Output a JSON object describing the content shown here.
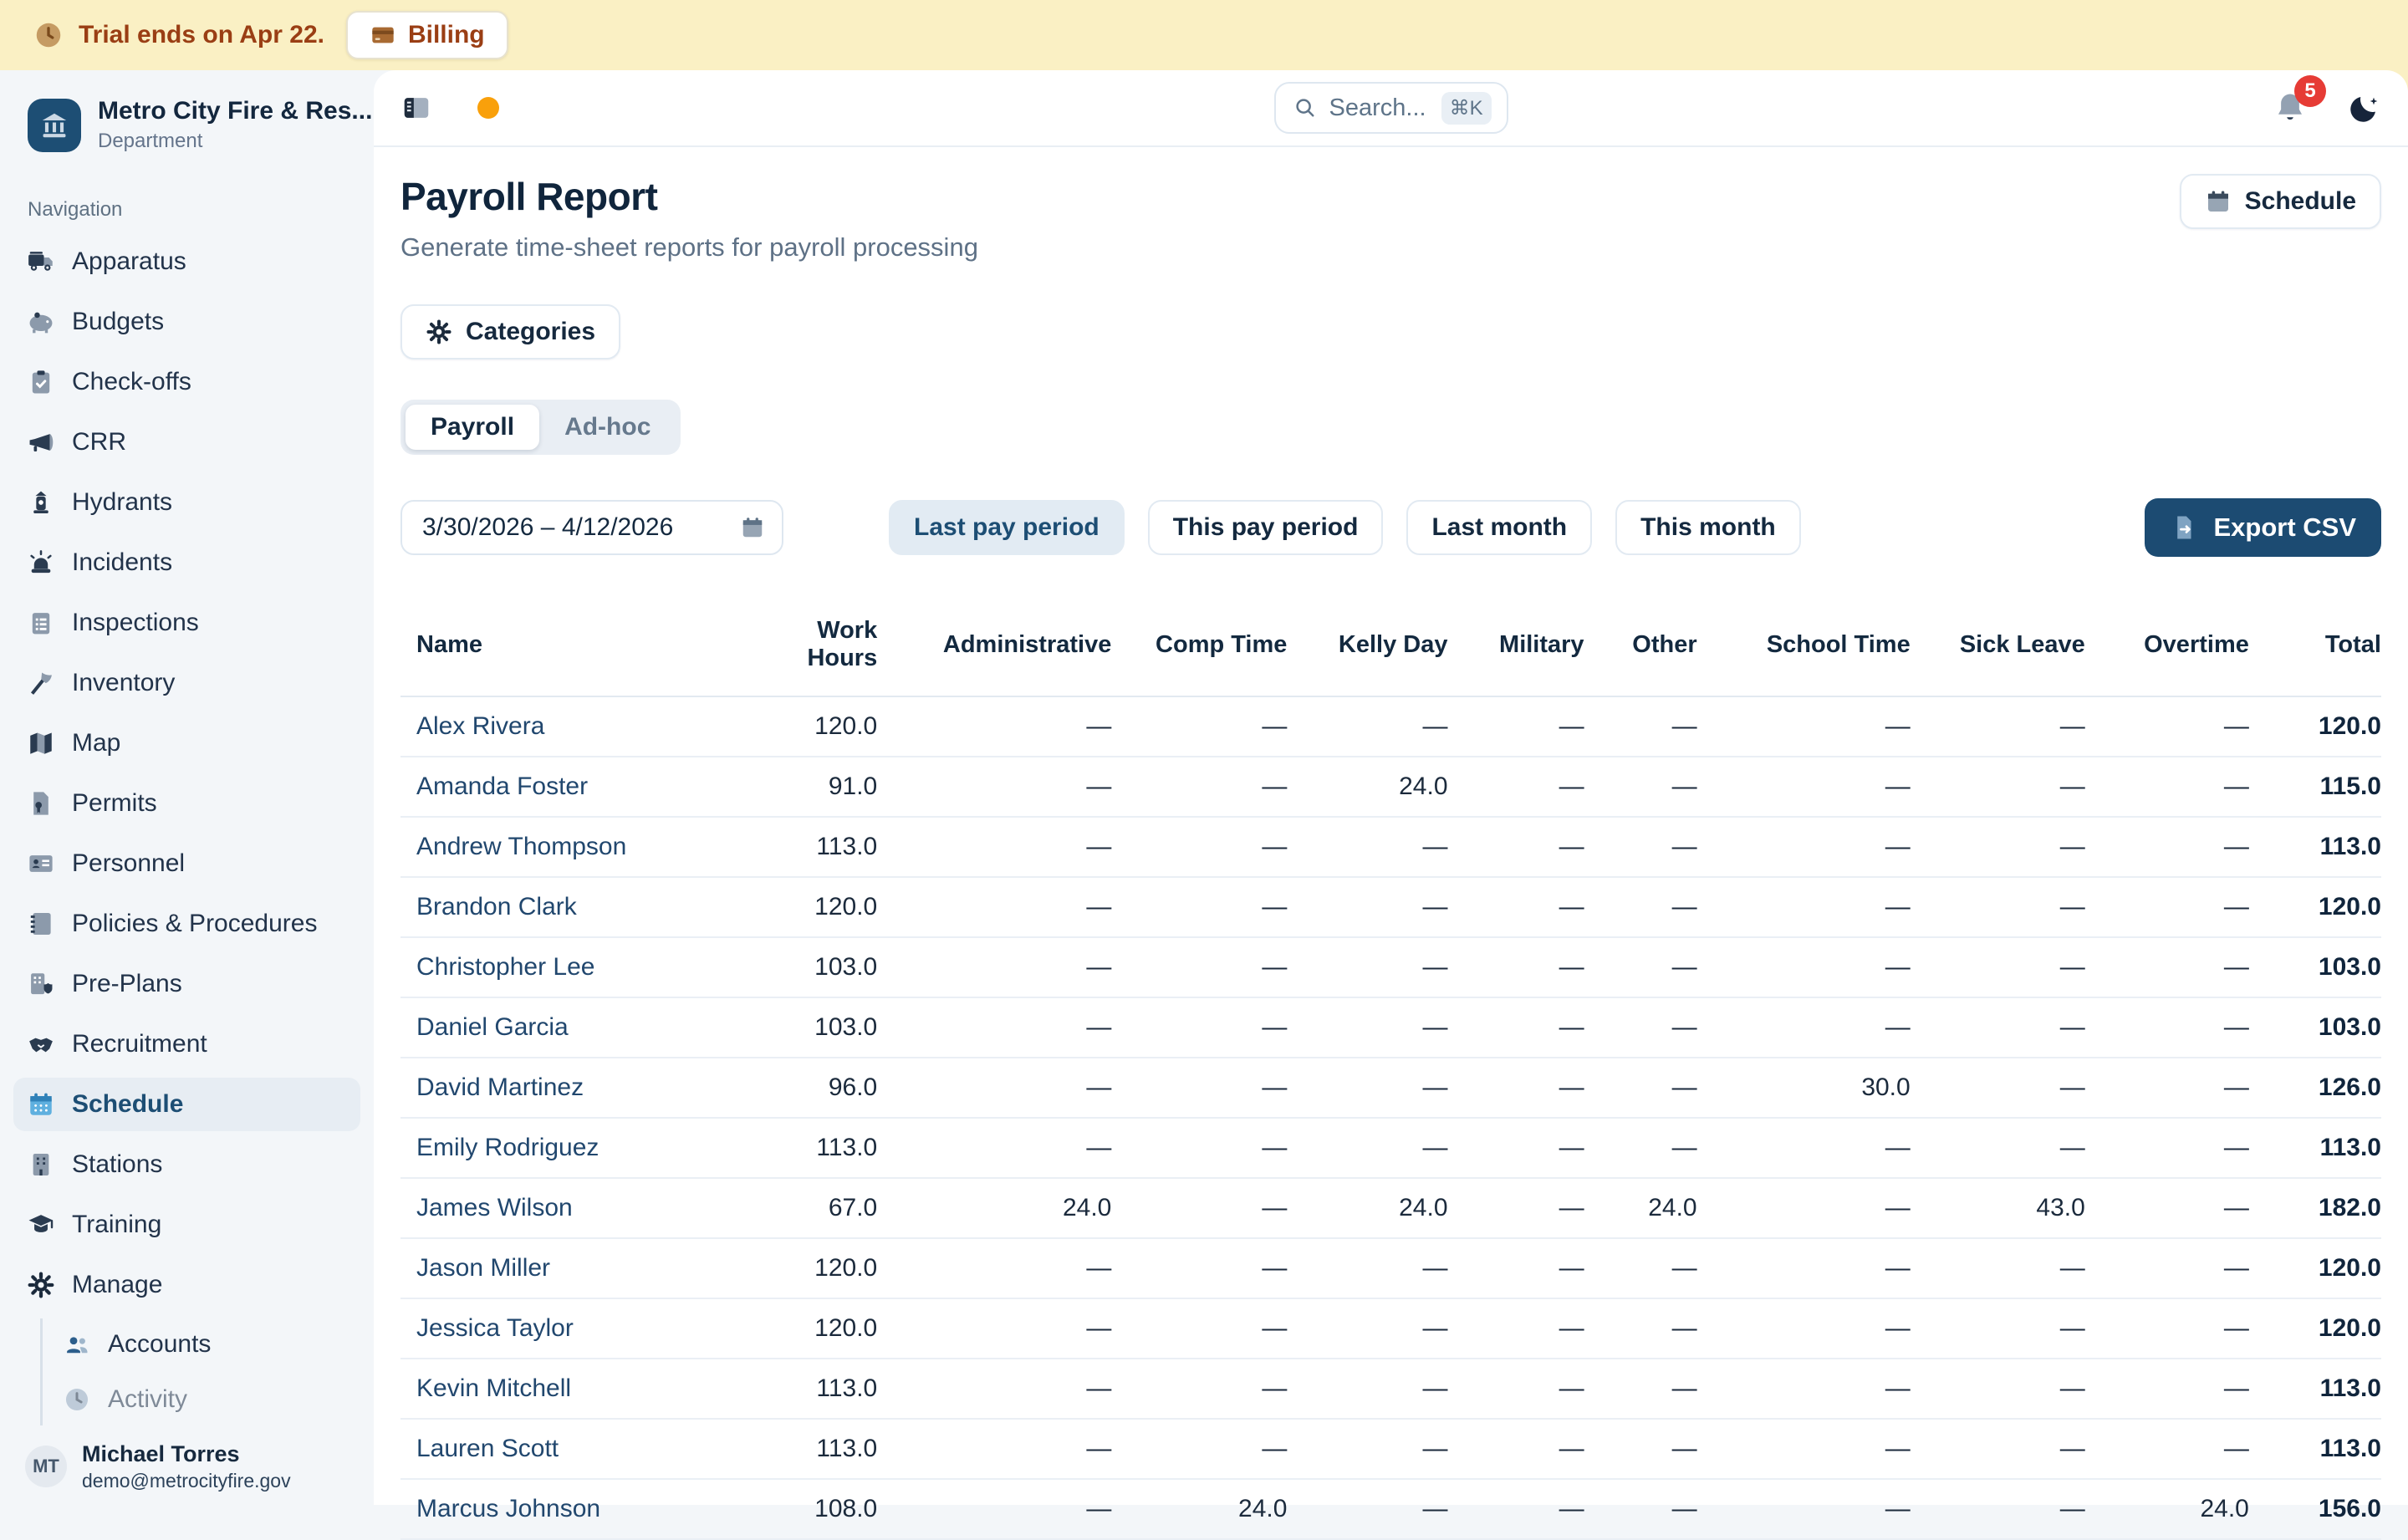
{
  "colors": {
    "banner_bg": "#FAF0C4",
    "banner_text": "#9A3E14",
    "brand_navy": "#1D4E74",
    "badge_red": "#E63B35",
    "accent_orange": "#F9A00B",
    "active_filter_bg": "#E2EBF3",
    "export_bg": "#1C4B72",
    "link_blue": "#21476E"
  },
  "banner": {
    "trial_text": "Trial ends on Apr 22.",
    "billing_label": "Billing"
  },
  "sidebar": {
    "org_name": "Metro City Fire & Res...",
    "org_type": "Department",
    "section_label": "Navigation",
    "items": [
      {
        "icon": "fire-truck",
        "label": "Apparatus"
      },
      {
        "icon": "piggy-bank",
        "label": "Budgets"
      },
      {
        "icon": "clipboard-check",
        "label": "Check-offs"
      },
      {
        "icon": "megaphone",
        "label": "CRR"
      },
      {
        "icon": "fire-hydrant",
        "label": "Hydrants"
      },
      {
        "icon": "siren",
        "label": "Incidents"
      },
      {
        "icon": "clipboard-list",
        "label": "Inspections"
      },
      {
        "icon": "axe",
        "label": "Inventory"
      },
      {
        "icon": "map",
        "label": "Map"
      },
      {
        "icon": "permit",
        "label": "Permits"
      },
      {
        "icon": "id-card",
        "label": "Personnel"
      },
      {
        "icon": "book",
        "label": "Policies & Procedures"
      },
      {
        "icon": "building-shield",
        "label": "Pre-Plans"
      },
      {
        "icon": "handshake",
        "label": "Recruitment"
      },
      {
        "icon": "calendar-active",
        "label": "Schedule",
        "active": true
      },
      {
        "icon": "building",
        "label": "Stations"
      },
      {
        "icon": "graduation-cap",
        "label": "Training"
      }
    ],
    "manage": {
      "icon": "gear",
      "label": "Manage",
      "children": [
        {
          "icon": "users",
          "label": "Accounts"
        },
        {
          "icon": "clock",
          "label": "Activity",
          "faded": true
        }
      ]
    },
    "user": {
      "initials": "MT",
      "name": "Michael Torres",
      "email": "demo@metrocityfire.gov"
    }
  },
  "topbar": {
    "search_placeholder": "Search...",
    "search_shortcut": "⌘K",
    "notification_count": "5"
  },
  "page": {
    "title": "Payroll Report",
    "subtitle": "Generate time-sheet reports for payroll processing",
    "schedule_button": "Schedule",
    "categories_button": "Categories",
    "tabs": [
      {
        "label": "Payroll",
        "active": true
      },
      {
        "label": "Ad-hoc",
        "active": false
      }
    ],
    "date_range": "3/30/2026 – 4/12/2026",
    "quick_filters": [
      {
        "label": "Last pay period",
        "active": true
      },
      {
        "label": "This pay period",
        "active": false
      },
      {
        "label": "Last month",
        "active": false
      },
      {
        "label": "This month",
        "active": false
      }
    ],
    "export_button": "Export CSV"
  },
  "table": {
    "columns": [
      "Name",
      "Work Hours",
      "Administrative",
      "Comp Time",
      "Kelly Day",
      "Military",
      "Other",
      "School Time",
      "Sick Leave",
      "Overtime",
      "Total"
    ],
    "rows": [
      {
        "name": "Alex Rivera",
        "values": [
          "120.0",
          "—",
          "—",
          "—",
          "—",
          "—",
          "—",
          "—",
          "—",
          "120.0"
        ]
      },
      {
        "name": "Amanda Foster",
        "values": [
          "91.0",
          "—",
          "—",
          "24.0",
          "—",
          "—",
          "—",
          "—",
          "—",
          "115.0"
        ]
      },
      {
        "name": "Andrew Thompson",
        "values": [
          "113.0",
          "—",
          "—",
          "—",
          "—",
          "—",
          "—",
          "—",
          "—",
          "113.0"
        ]
      },
      {
        "name": "Brandon Clark",
        "values": [
          "120.0",
          "—",
          "—",
          "—",
          "—",
          "—",
          "—",
          "—",
          "—",
          "120.0"
        ]
      },
      {
        "name": "Christopher Lee",
        "values": [
          "103.0",
          "—",
          "—",
          "—",
          "—",
          "—",
          "—",
          "—",
          "—",
          "103.0"
        ]
      },
      {
        "name": "Daniel Garcia",
        "values": [
          "103.0",
          "—",
          "—",
          "—",
          "—",
          "—",
          "—",
          "—",
          "—",
          "103.0"
        ]
      },
      {
        "name": "David Martinez",
        "values": [
          "96.0",
          "—",
          "—",
          "—",
          "—",
          "—",
          "30.0",
          "—",
          "—",
          "126.0"
        ]
      },
      {
        "name": "Emily Rodriguez",
        "values": [
          "113.0",
          "—",
          "—",
          "—",
          "—",
          "—",
          "—",
          "—",
          "—",
          "113.0"
        ]
      },
      {
        "name": "James Wilson",
        "values": [
          "67.0",
          "24.0",
          "—",
          "24.0",
          "—",
          "24.0",
          "—",
          "43.0",
          "—",
          "182.0"
        ]
      },
      {
        "name": "Jason Miller",
        "values": [
          "120.0",
          "—",
          "—",
          "—",
          "—",
          "—",
          "—",
          "—",
          "—",
          "120.0"
        ]
      },
      {
        "name": "Jessica Taylor",
        "values": [
          "120.0",
          "—",
          "—",
          "—",
          "—",
          "—",
          "—",
          "—",
          "—",
          "120.0"
        ]
      },
      {
        "name": "Kevin Mitchell",
        "values": [
          "113.0",
          "—",
          "—",
          "—",
          "—",
          "—",
          "—",
          "—",
          "—",
          "113.0"
        ]
      },
      {
        "name": "Lauren Scott",
        "values": [
          "113.0",
          "—",
          "—",
          "—",
          "—",
          "—",
          "—",
          "—",
          "—",
          "113.0"
        ]
      },
      {
        "name": "Marcus Johnson",
        "values": [
          "108.0",
          "—",
          "24.0",
          "—",
          "—",
          "—",
          "—",
          "—",
          "24.0",
          "156.0"
        ]
      }
    ]
  }
}
